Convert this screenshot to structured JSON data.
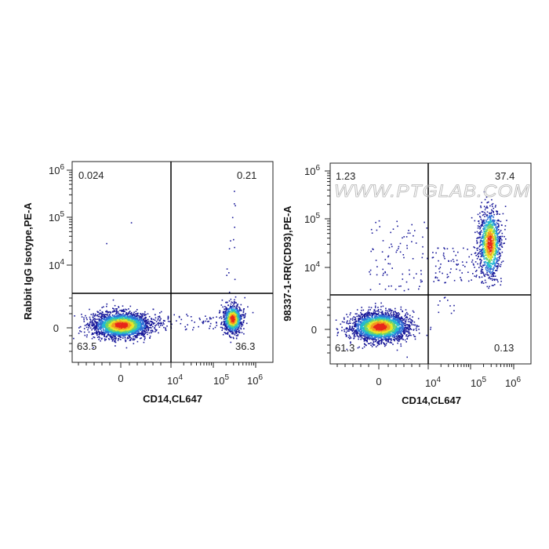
{
  "watermark": "WWW.PTGLAB.COM",
  "chart_data": [
    {
      "type": "scatter",
      "title": "",
      "xlabel": "CD14,CL647",
      "ylabel": "Rabbit IgG Isotype,PE-A",
      "x_scale": "biexponential",
      "y_scale": "biexponential",
      "x_ticks": [
        {
          "label": "0",
          "exp": ""
        },
        {
          "label": "10",
          "exp": "4"
        },
        {
          "label": "10",
          "exp": "5"
        },
        {
          "label": "10",
          "exp": "6"
        }
      ],
      "y_ticks": [
        {
          "label": "0",
          "exp": ""
        },
        {
          "label": "10",
          "exp": "4"
        },
        {
          "label": "10",
          "exp": "5"
        },
        {
          "label": "10",
          "exp": "6"
        }
      ],
      "quadrants": {
        "upper_left": "0.024",
        "upper_right": "0.21",
        "lower_left": "63.5",
        "lower_right": "36.3"
      },
      "populations": [
        {
          "name": "CD14 negative",
          "quadrant": "lower_left",
          "percent": 63.5
        },
        {
          "name": "CD14 positive",
          "quadrant": "lower_right",
          "percent": 36.3
        },
        {
          "name": "upper left",
          "quadrant": "upper_left",
          "percent": 0.024
        },
        {
          "name": "upper right",
          "quadrant": "upper_right",
          "percent": 0.21
        }
      ]
    },
    {
      "type": "scatter",
      "title": "",
      "xlabel": "CD14,CL647",
      "ylabel": "98337-1-RR(CD93),PE-A",
      "x_scale": "biexponential",
      "y_scale": "biexponential",
      "x_ticks": [
        {
          "label": "0",
          "exp": ""
        },
        {
          "label": "10",
          "exp": "4"
        },
        {
          "label": "10",
          "exp": "5"
        },
        {
          "label": "10",
          "exp": "6"
        }
      ],
      "y_ticks": [
        {
          "label": "0",
          "exp": ""
        },
        {
          "label": "10",
          "exp": "4"
        },
        {
          "label": "10",
          "exp": "5"
        },
        {
          "label": "10",
          "exp": "6"
        }
      ],
      "quadrants": {
        "upper_left": "1.23",
        "upper_right": "37.4",
        "lower_left": "61.3",
        "lower_right": "0.13"
      },
      "populations": [
        {
          "name": "CD14 negative",
          "quadrant": "lower_left",
          "percent": 61.3
        },
        {
          "name": "CD14 positive CD93 positive",
          "quadrant": "upper_right",
          "percent": 37.4
        },
        {
          "name": "upper left",
          "quadrant": "upper_left",
          "percent": 1.23
        },
        {
          "name": "lower right",
          "quadrant": "lower_right",
          "percent": 0.13
        }
      ]
    }
  ]
}
